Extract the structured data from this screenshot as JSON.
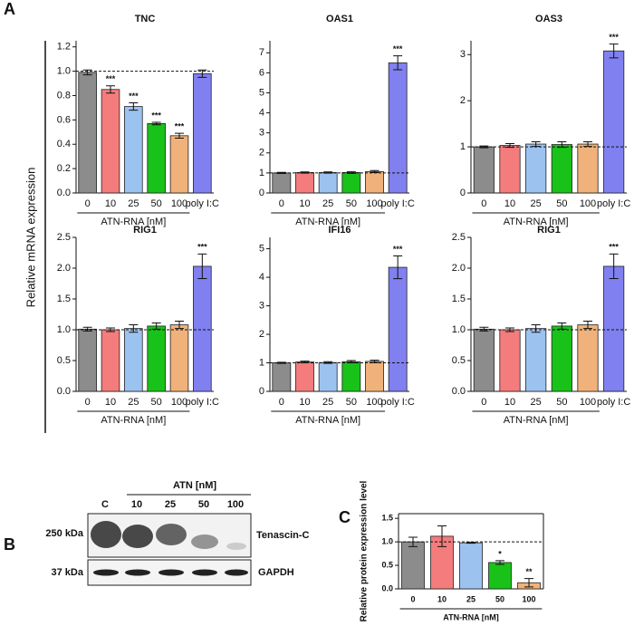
{
  "panel_labels": [
    "A",
    "B",
    "C"
  ],
  "shared_ylabel": "Relative mRNA expression",
  "chart_data": [
    {
      "type": "bar",
      "title": "TNC",
      "categories": [
        "0",
        "10",
        "25",
        "50",
        "100",
        "poly I:C"
      ],
      "values": [
        0.99,
        0.85,
        0.71,
        0.57,
        0.47,
        0.98
      ],
      "errors": [
        0.02,
        0.03,
        0.03,
        0.01,
        0.02,
        0.03
      ],
      "significance": [
        null,
        "***",
        "***",
        "***",
        "***",
        null
      ],
      "colors": [
        "#8c8c8c",
        "#f47c7c",
        "#9cc3f0",
        "#19c219",
        "#f0b27a",
        "#8080f0"
      ],
      "xlabel": "ATN-RNA [nM]",
      "reference_line": 1,
      "ylim": [
        0,
        1.25
      ],
      "yticks": [
        {
          "value": 0,
          "label": "0.0"
        },
        0.2,
        0.4,
        0.6,
        0.8,
        {
          "value": 1,
          "label": "1.0"
        },
        1.2
      ]
    },
    {
      "type": "bar",
      "title": "OAS1",
      "categories": [
        "0",
        "10",
        "25",
        "50",
        "100",
        "poly I:C"
      ],
      "values": [
        1,
        1.02,
        1.02,
        1.02,
        1.07,
        6.5
      ],
      "errors": [
        0.03,
        0.03,
        0.03,
        0.04,
        0.05,
        0.35
      ],
      "significance": [
        null,
        null,
        null,
        null,
        null,
        "***"
      ],
      "colors": [
        "#8c8c8c",
        "#f47c7c",
        "#9cc3f0",
        "#19c219",
        "#f0b27a",
        "#8080f0"
      ],
      "xlabel": "ATN-RNA [nM]",
      "reference_line": 1,
      "ylim": [
        0,
        7.6
      ],
      "yticks": [
        0,
        1,
        2,
        3,
        4,
        5,
        6,
        7
      ]
    },
    {
      "type": "bar",
      "title": "OAS3",
      "categories": [
        "0",
        "10",
        "25",
        "50",
        "100",
        "poly I:C"
      ],
      "values": [
        1,
        1.03,
        1.06,
        1.05,
        1.06,
        3.08
      ],
      "errors": [
        0.02,
        0.04,
        0.05,
        0.06,
        0.05,
        0.15
      ],
      "significance": [
        null,
        null,
        null,
        null,
        null,
        "***"
      ],
      "colors": [
        "#8c8c8c",
        "#f47c7c",
        "#9cc3f0",
        "#19c219",
        "#f0b27a",
        "#8080f0"
      ],
      "xlabel": "ATN-RNA [nM]",
      "reference_line": 1,
      "ylim": [
        0,
        3.3
      ],
      "yticks": [
        0,
        1,
        2,
        3
      ]
    },
    {
      "type": "bar",
      "title": "RIG1",
      "categories": [
        "0",
        "10",
        "25",
        "50",
        "100",
        "poly I:C"
      ],
      "values": [
        1.01,
        1.0,
        1.02,
        1.06,
        1.08,
        2.03
      ],
      "errors": [
        0.03,
        0.03,
        0.06,
        0.05,
        0.06,
        0.2
      ],
      "significance": [
        null,
        null,
        null,
        null,
        null,
        "***"
      ],
      "colors": [
        "#8c8c8c",
        "#f47c7c",
        "#9cc3f0",
        "#19c219",
        "#f0b27a",
        "#8080f0"
      ],
      "xlabel": "ATN-RNA [nM]",
      "reference_line": 1,
      "ylim": [
        0,
        2.5
      ],
      "yticks": [
        {
          "value": 0,
          "label": "0.0"
        },
        0.5,
        {
          "value": 1,
          "label": "1.0"
        },
        1.5,
        {
          "value": 2,
          "label": "2.0"
        },
        2.5
      ]
    },
    {
      "type": "bar",
      "title": "IFI16",
      "categories": [
        "0",
        "10",
        "25",
        "50",
        "100",
        "poly I:C"
      ],
      "values": [
        1,
        1.03,
        1.01,
        1.04,
        1.05,
        4.35
      ],
      "errors": [
        0.02,
        0.03,
        0.03,
        0.04,
        0.04,
        0.4
      ],
      "significance": [
        null,
        null,
        null,
        null,
        null,
        "***"
      ],
      "colors": [
        "#8c8c8c",
        "#f47c7c",
        "#9cc3f0",
        "#19c219",
        "#f0b27a",
        "#8080f0"
      ],
      "xlabel": "ATN-RNA [nM]",
      "reference_line": 1,
      "ylim": [
        0,
        5.4
      ],
      "yticks": [
        0,
        1,
        2,
        3,
        4,
        5
      ]
    },
    {
      "type": "bar",
      "title": "RIG1",
      "categories": [
        "0",
        "10",
        "25",
        "50",
        "100",
        "poly I:C"
      ],
      "values": [
        1.01,
        1.0,
        1.02,
        1.06,
        1.08,
        2.03
      ],
      "errors": [
        0.03,
        0.03,
        0.06,
        0.05,
        0.06,
        0.2
      ],
      "significance": [
        null,
        null,
        null,
        null,
        null,
        "***"
      ],
      "colors": [
        "#8c8c8c",
        "#f47c7c",
        "#9cc3f0",
        "#19c219",
        "#f0b27a",
        "#8080f0"
      ],
      "xlabel": "ATN-RNA [nM]",
      "reference_line": 1,
      "ylim": [
        0,
        2.5
      ],
      "yticks": [
        {
          "value": 0,
          "label": "0.0"
        },
        0.5,
        {
          "value": 1,
          "label": "1.0"
        },
        1.5,
        {
          "value": 2,
          "label": "2.0"
        },
        2.5
      ]
    },
    {
      "type": "bar",
      "ylabel": "Relative protein expression level",
      "categories": [
        "0",
        "10",
        "25",
        "50",
        "100"
      ],
      "values": [
        1.0,
        1.12,
        0.98,
        0.56,
        0.13
      ],
      "errors": [
        0.1,
        0.22,
        0.01,
        0.04,
        0.09
      ],
      "significance": [
        null,
        null,
        null,
        "*",
        "**"
      ],
      "colors": [
        "#8c8c8c",
        "#f47c7c",
        "#9cc3f0",
        "#19c219",
        "#f0b27a"
      ],
      "xlabel": "ATN-RNA [nM]",
      "reference_line": 1,
      "ylim": [
        0,
        1.6
      ],
      "yticks": [
        {
          "value": 0,
          "label": "0.0"
        },
        0.5,
        {
          "value": 1,
          "label": "1.0"
        },
        1.5
      ]
    }
  ],
  "blot": {
    "header": "ATN [nM]",
    "lanes": [
      "C",
      "10",
      "25",
      "50",
      "100"
    ],
    "markers": [
      "250 kDa",
      "37 kDa"
    ],
    "proteins": [
      "Tenascin-C",
      "GAPDH"
    ]
  }
}
